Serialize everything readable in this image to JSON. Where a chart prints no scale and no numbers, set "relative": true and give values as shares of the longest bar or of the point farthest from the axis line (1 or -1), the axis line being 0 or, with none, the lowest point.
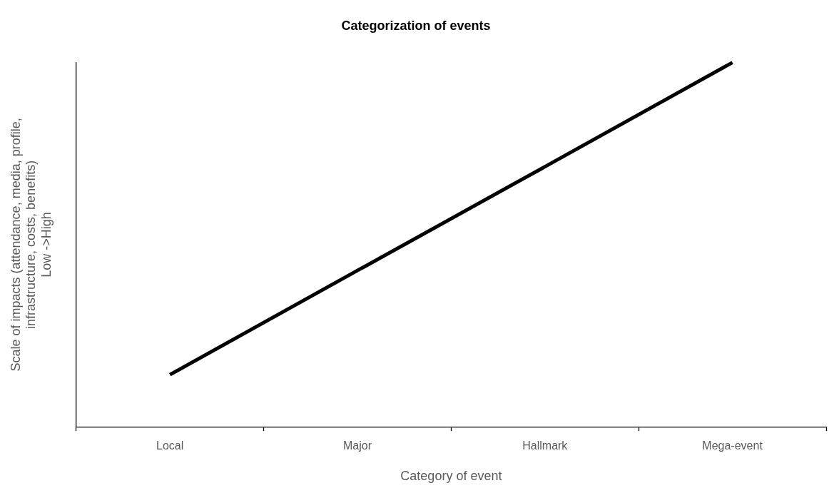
{
  "chart_data": {
    "type": "line",
    "title": "Categorization of events",
    "xlabel": "Category of event",
    "ylabel": "Scale of impacts (attendance, media, profile,\ninfrastructure, costs, benefits)\nLow ->High",
    "categories": [
      "Local",
      "Major",
      "Hallmark",
      "Mega-event"
    ],
    "relative": true,
    "series": [
      {
        "color": "#000000",
        "values": [
          0.143,
          0.429,
          0.714,
          1
        ]
      }
    ],
    "marker": "none",
    "line_style": "solid",
    "grid": false,
    "legend": false
  }
}
